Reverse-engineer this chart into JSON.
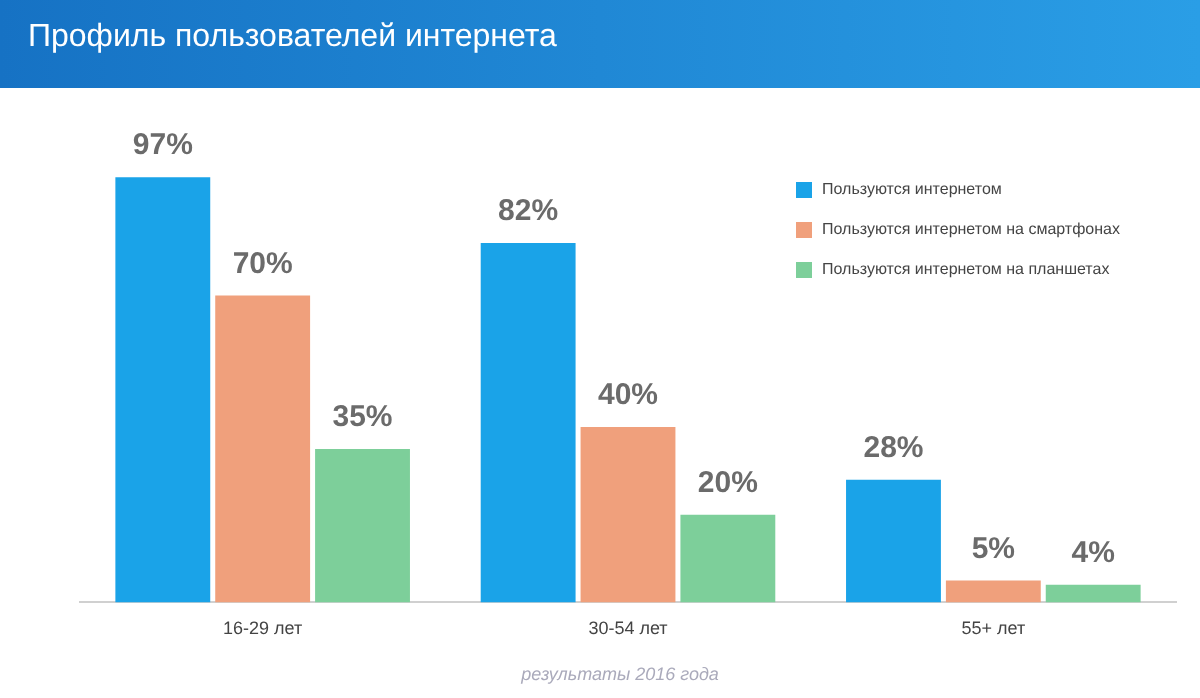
{
  "chart_data": {
    "type": "bar",
    "title": "Профиль пользователей интернета",
    "categories": [
      "16-29 лет",
      "30-54 лет",
      "55+ лет"
    ],
    "series": [
      {
        "name": "Пользуются интернетом",
        "color": "#1aa3e8",
        "values": [
          97,
          82,
          28
        ],
        "value_labels": [
          "97%",
          "82%",
          "28%"
        ]
      },
      {
        "name": "Пользуются интернетом на смартфонах",
        "color": "#f0a07c",
        "values": [
          70,
          40,
          5
        ],
        "value_labels": [
          "70%",
          "40%",
          "5%"
        ]
      },
      {
        "name": "Пользуются интернетом на планшетах",
        "color": "#7dcf9a",
        "values": [
          35,
          20,
          4
        ],
        "value_labels": [
          "35%",
          "20%",
          "4%"
        ]
      }
    ],
    "legend": "top right",
    "annotations": [
      "результаты 2016 года"
    ]
  }
}
